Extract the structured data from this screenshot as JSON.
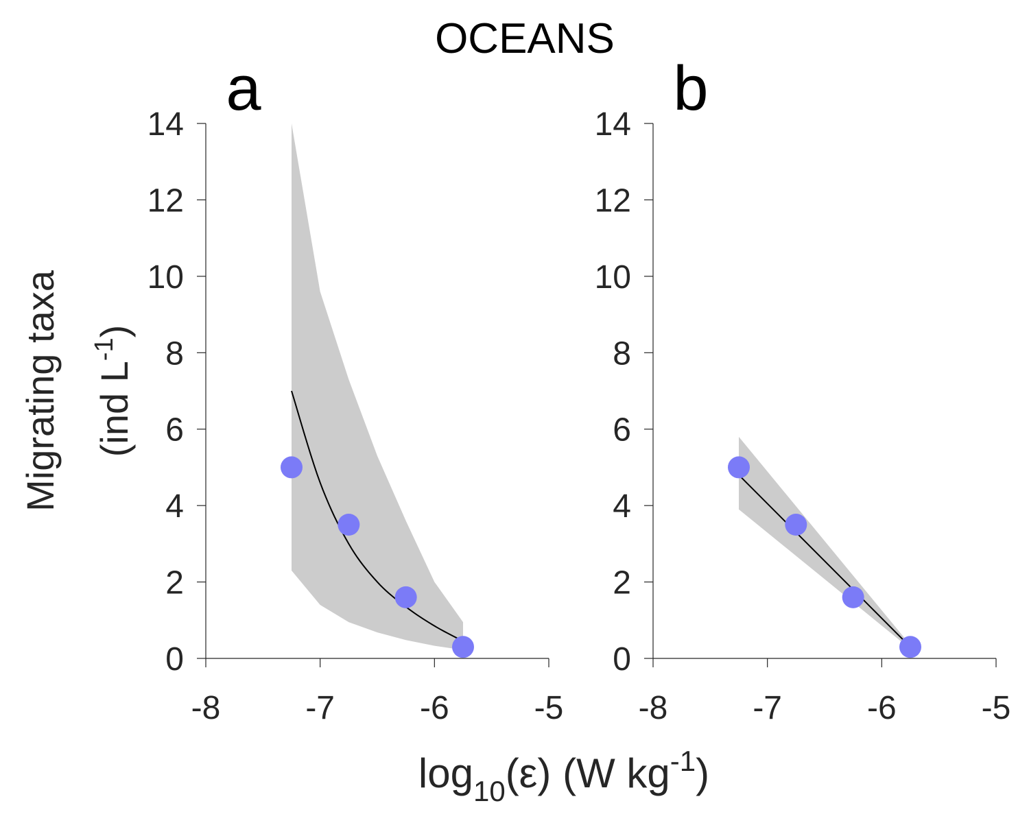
{
  "title": "OCEANS",
  "ylabel_line1": "Migrating taxa",
  "ylabel_line2": {
    "pre": "(ind L",
    "sup": "-1",
    "post": ")"
  },
  "xlabel": {
    "pre": "log",
    "sub": "10",
    "mid": "(ε) (W kg",
    "sup": "-1",
    "post": ")"
  },
  "colors": {
    "points": "#7b7bf7",
    "band": "#cccccc",
    "fit": "#000000",
    "axis": "#262626"
  },
  "chart_data": [
    {
      "panel": "a",
      "type": "scatter",
      "xlim": [
        -8,
        -5
      ],
      "ylim": [
        0,
        14
      ],
      "xticks": [
        -8,
        -7,
        -6,
        -5
      ],
      "yticks": [
        0,
        2,
        4,
        6,
        8,
        10,
        12,
        14
      ],
      "points": {
        "x": [
          -7.25,
          -6.75,
          -6.25,
          -5.75
        ],
        "y": [
          5.0,
          3.5,
          1.6,
          0.3
        ]
      },
      "fit": {
        "x": [
          -7.25,
          -7.0,
          -6.75,
          -6.5,
          -6.25,
          -6.0,
          -5.75
        ],
        "y": [
          7.0,
          4.6,
          3.0,
          2.0,
          1.35,
          0.85,
          0.45
        ]
      },
      "band": {
        "x": [
          -7.25,
          -7.0,
          -6.75,
          -6.5,
          -6.25,
          -6.0,
          -5.75
        ],
        "upper": [
          14.0,
          9.6,
          7.3,
          5.3,
          3.6,
          2.0,
          0.95
        ],
        "lower": [
          2.3,
          1.4,
          0.95,
          0.68,
          0.48,
          0.33,
          0.22
        ]
      }
    },
    {
      "panel": "b",
      "type": "scatter",
      "xlim": [
        -8,
        -5
      ],
      "ylim": [
        0,
        14
      ],
      "xticks": [
        -8,
        -7,
        -6,
        -5
      ],
      "yticks": [
        0,
        2,
        4,
        6,
        8,
        10,
        12,
        14
      ],
      "points": {
        "x": [
          -7.25,
          -6.75,
          -6.25,
          -5.75
        ],
        "y": [
          5.0,
          3.5,
          1.6,
          0.3
        ]
      },
      "fit": {
        "x": [
          -7.25,
          -5.75
        ],
        "y": [
          4.8,
          0.3
        ]
      },
      "band": {
        "x": [
          -7.25,
          -5.75
        ],
        "upper": [
          5.8,
          0.35
        ],
        "lower": [
          3.9,
          0.25
        ]
      }
    }
  ]
}
